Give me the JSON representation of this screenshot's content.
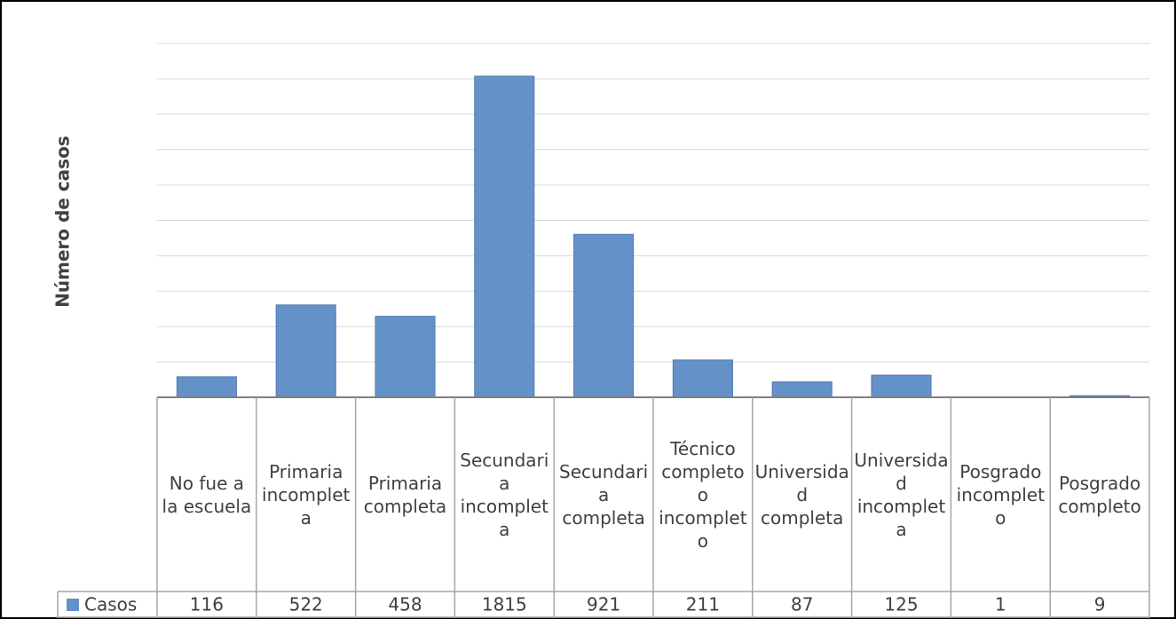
{
  "chart_data": {
    "type": "bar",
    "y_axis_label": "Número de casos",
    "categories": [
      "No fue a la escuela",
      "Primaria incompleta",
      "Primaria completa",
      "Secundaria incompleta",
      "Secundaria completa",
      "Técnico completo o incompleto",
      "Universidad completa",
      "Universidad incompleta",
      "Posgrado incompleto",
      "Posgrado completo"
    ],
    "series": [
      {
        "name": "Casos",
        "color": "#6591c9",
        "values": [
          116,
          522,
          458,
          1815,
          921,
          211,
          87,
          125,
          1,
          9
        ]
      }
    ],
    "ylim": [
      0,
      2000
    ],
    "yticks": [
      0,
      200,
      400,
      600,
      800,
      1000,
      1200,
      1400,
      1600,
      1800,
      2000
    ],
    "grid": true
  }
}
